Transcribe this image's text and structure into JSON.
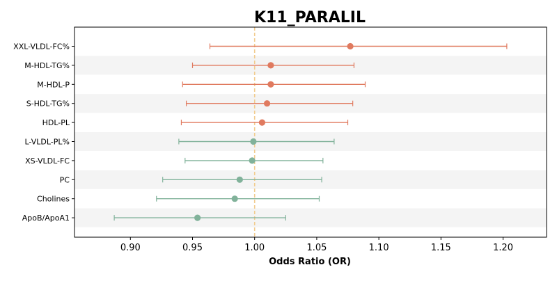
{
  "chart_data": {
    "type": "forest",
    "title": "K11_PARALIL",
    "xlabel": "Odds Ratio (OR)",
    "xlim": [
      0.855,
      1.235
    ],
    "xticks": [
      "0.90",
      "0.95",
      "1.00",
      "1.05",
      "1.10",
      "1.15",
      "1.20"
    ],
    "reference_line": 1.0,
    "colors": {
      "positive": "#E07A5F",
      "negative": "#81B29A",
      "reference": "#F2CC8F",
      "band": "#F4F4F4"
    },
    "rows": [
      {
        "label": "XXL-VLDL-FC%",
        "or": 1.077,
        "lo": 0.964,
        "hi": 1.203,
        "group": "positive"
      },
      {
        "label": "M-HDL-TG%",
        "or": 1.013,
        "lo": 0.95,
        "hi": 1.08,
        "group": "positive"
      },
      {
        "label": "M-HDL-P",
        "or": 1.013,
        "lo": 0.942,
        "hi": 1.089,
        "group": "positive"
      },
      {
        "label": "S-HDL-TG%",
        "or": 1.01,
        "lo": 0.945,
        "hi": 1.079,
        "group": "positive"
      },
      {
        "label": "HDL-PL",
        "or": 1.006,
        "lo": 0.941,
        "hi": 1.075,
        "group": "positive"
      },
      {
        "label": "L-VLDL-PL%",
        "or": 0.999,
        "lo": 0.939,
        "hi": 1.064,
        "group": "negative"
      },
      {
        "label": "XS-VLDL-FC",
        "or": 0.998,
        "lo": 0.944,
        "hi": 1.055,
        "group": "negative"
      },
      {
        "label": "PC",
        "or": 0.988,
        "lo": 0.926,
        "hi": 1.054,
        "group": "negative"
      },
      {
        "label": "Cholines",
        "or": 0.984,
        "lo": 0.921,
        "hi": 1.052,
        "group": "negative"
      },
      {
        "label": "ApoB/ApoA1",
        "or": 0.954,
        "lo": 0.887,
        "hi": 1.025,
        "group": "negative"
      }
    ]
  }
}
